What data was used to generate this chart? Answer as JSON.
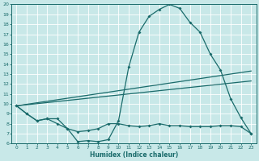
{
  "bg_color": "#c8e8e8",
  "grid_color": "#ffffff",
  "line_color": "#1a6b6b",
  "xlabel": "Humidex (Indice chaleur)",
  "xlim": [
    -0.5,
    23.5
  ],
  "ylim": [
    6,
    20
  ],
  "xticks": [
    0,
    1,
    2,
    3,
    4,
    5,
    6,
    7,
    8,
    9,
    10,
    11,
    12,
    13,
    14,
    15,
    16,
    17,
    18,
    19,
    20,
    21,
    22,
    23
  ],
  "yticks": [
    6,
    7,
    8,
    9,
    10,
    11,
    12,
    13,
    14,
    15,
    16,
    17,
    18,
    19,
    20
  ],
  "line1_x": [
    0,
    1,
    2,
    3,
    4,
    5,
    6,
    7,
    8,
    9,
    10,
    11,
    12,
    13,
    14,
    15,
    16,
    17,
    18,
    19,
    20,
    21,
    22,
    23
  ],
  "line1_y": [
    9.8,
    9.0,
    8.3,
    8.5,
    8.0,
    7.5,
    7.2,
    7.3,
    7.5,
    8.0,
    8.0,
    7.8,
    7.7,
    7.8,
    8.0,
    7.8,
    7.8,
    7.7,
    7.7,
    7.7,
    7.8,
    7.8,
    7.7,
    7.0
  ],
  "line2_x": [
    0,
    1,
    2,
    3,
    4,
    5,
    6,
    7,
    8,
    9,
    10,
    11,
    12,
    13,
    14,
    15,
    16,
    17,
    18,
    19,
    20,
    21,
    22,
    23
  ],
  "line2_y": [
    9.8,
    9.0,
    8.3,
    8.5,
    8.5,
    7.5,
    6.2,
    6.3,
    6.2,
    6.4,
    8.3,
    13.7,
    17.2,
    18.8,
    19.5,
    20.0,
    19.6,
    18.2,
    17.2,
    15.0,
    13.4,
    10.5,
    8.6,
    7.0
  ],
  "line3_x": [
    0,
    23
  ],
  "line3_y": [
    9.8,
    13.3
  ],
  "line4_x": [
    0,
    23
  ],
  "line4_y": [
    9.8,
    12.3
  ]
}
